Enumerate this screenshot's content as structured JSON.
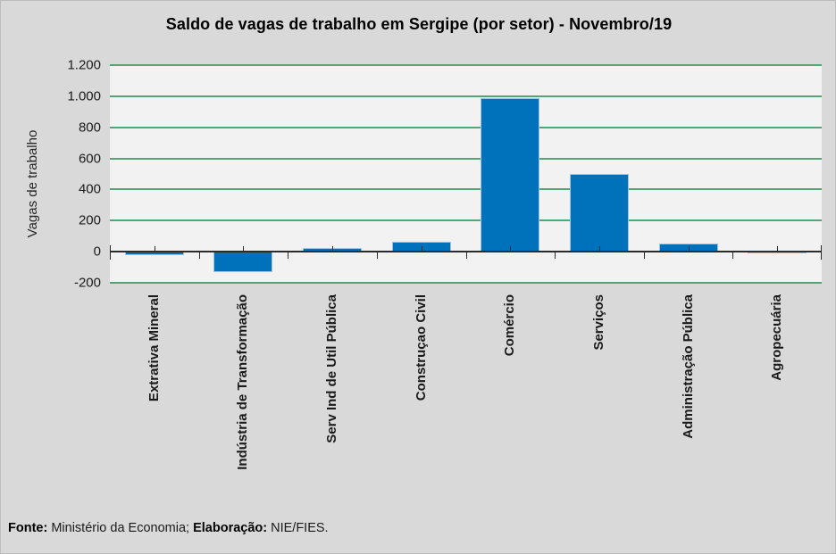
{
  "chart_data": {
    "type": "bar",
    "title": "Saldo de vagas de trabalho em Sergipe (por setor) - Novembro/19",
    "ylabel": "Vagas de trabalho",
    "xlabel": "",
    "categories": [
      "Extrativa Mineral",
      "Indústria de Transformação",
      "Serv Ind de Util Pública",
      "Construçao Civil",
      "Comércio",
      "Serviços",
      "Administração Pública",
      "Agropecuária"
    ],
    "values": [
      -20,
      -130,
      25,
      65,
      990,
      500,
      55,
      -10
    ],
    "ylim": [
      -200,
      1200
    ],
    "ytick_step": 200,
    "yticks": [
      1200,
      1000,
      800,
      600,
      400,
      200,
      0,
      -200
    ],
    "ytick_labels": [
      "1.200",
      "1.000",
      "800",
      "600",
      "400",
      "200",
      "0",
      "-200"
    ],
    "grid": true,
    "legend": false,
    "colors": {
      "bar": "#0072bc",
      "bar_edge": "#9dc3e6",
      "gridline": "#53a578",
      "plot_background": "#f2f2f2",
      "page_background": "#d9d9d9",
      "axis": "#2b2b2b",
      "text": "#1a1a1a"
    }
  },
  "footer": {
    "fonte_label": "Fonte:",
    "fonte_text": " Ministério da Economia; ",
    "elaboracao_label": "Elaboração:",
    "elaboracao_text": " NIE/FIES."
  }
}
